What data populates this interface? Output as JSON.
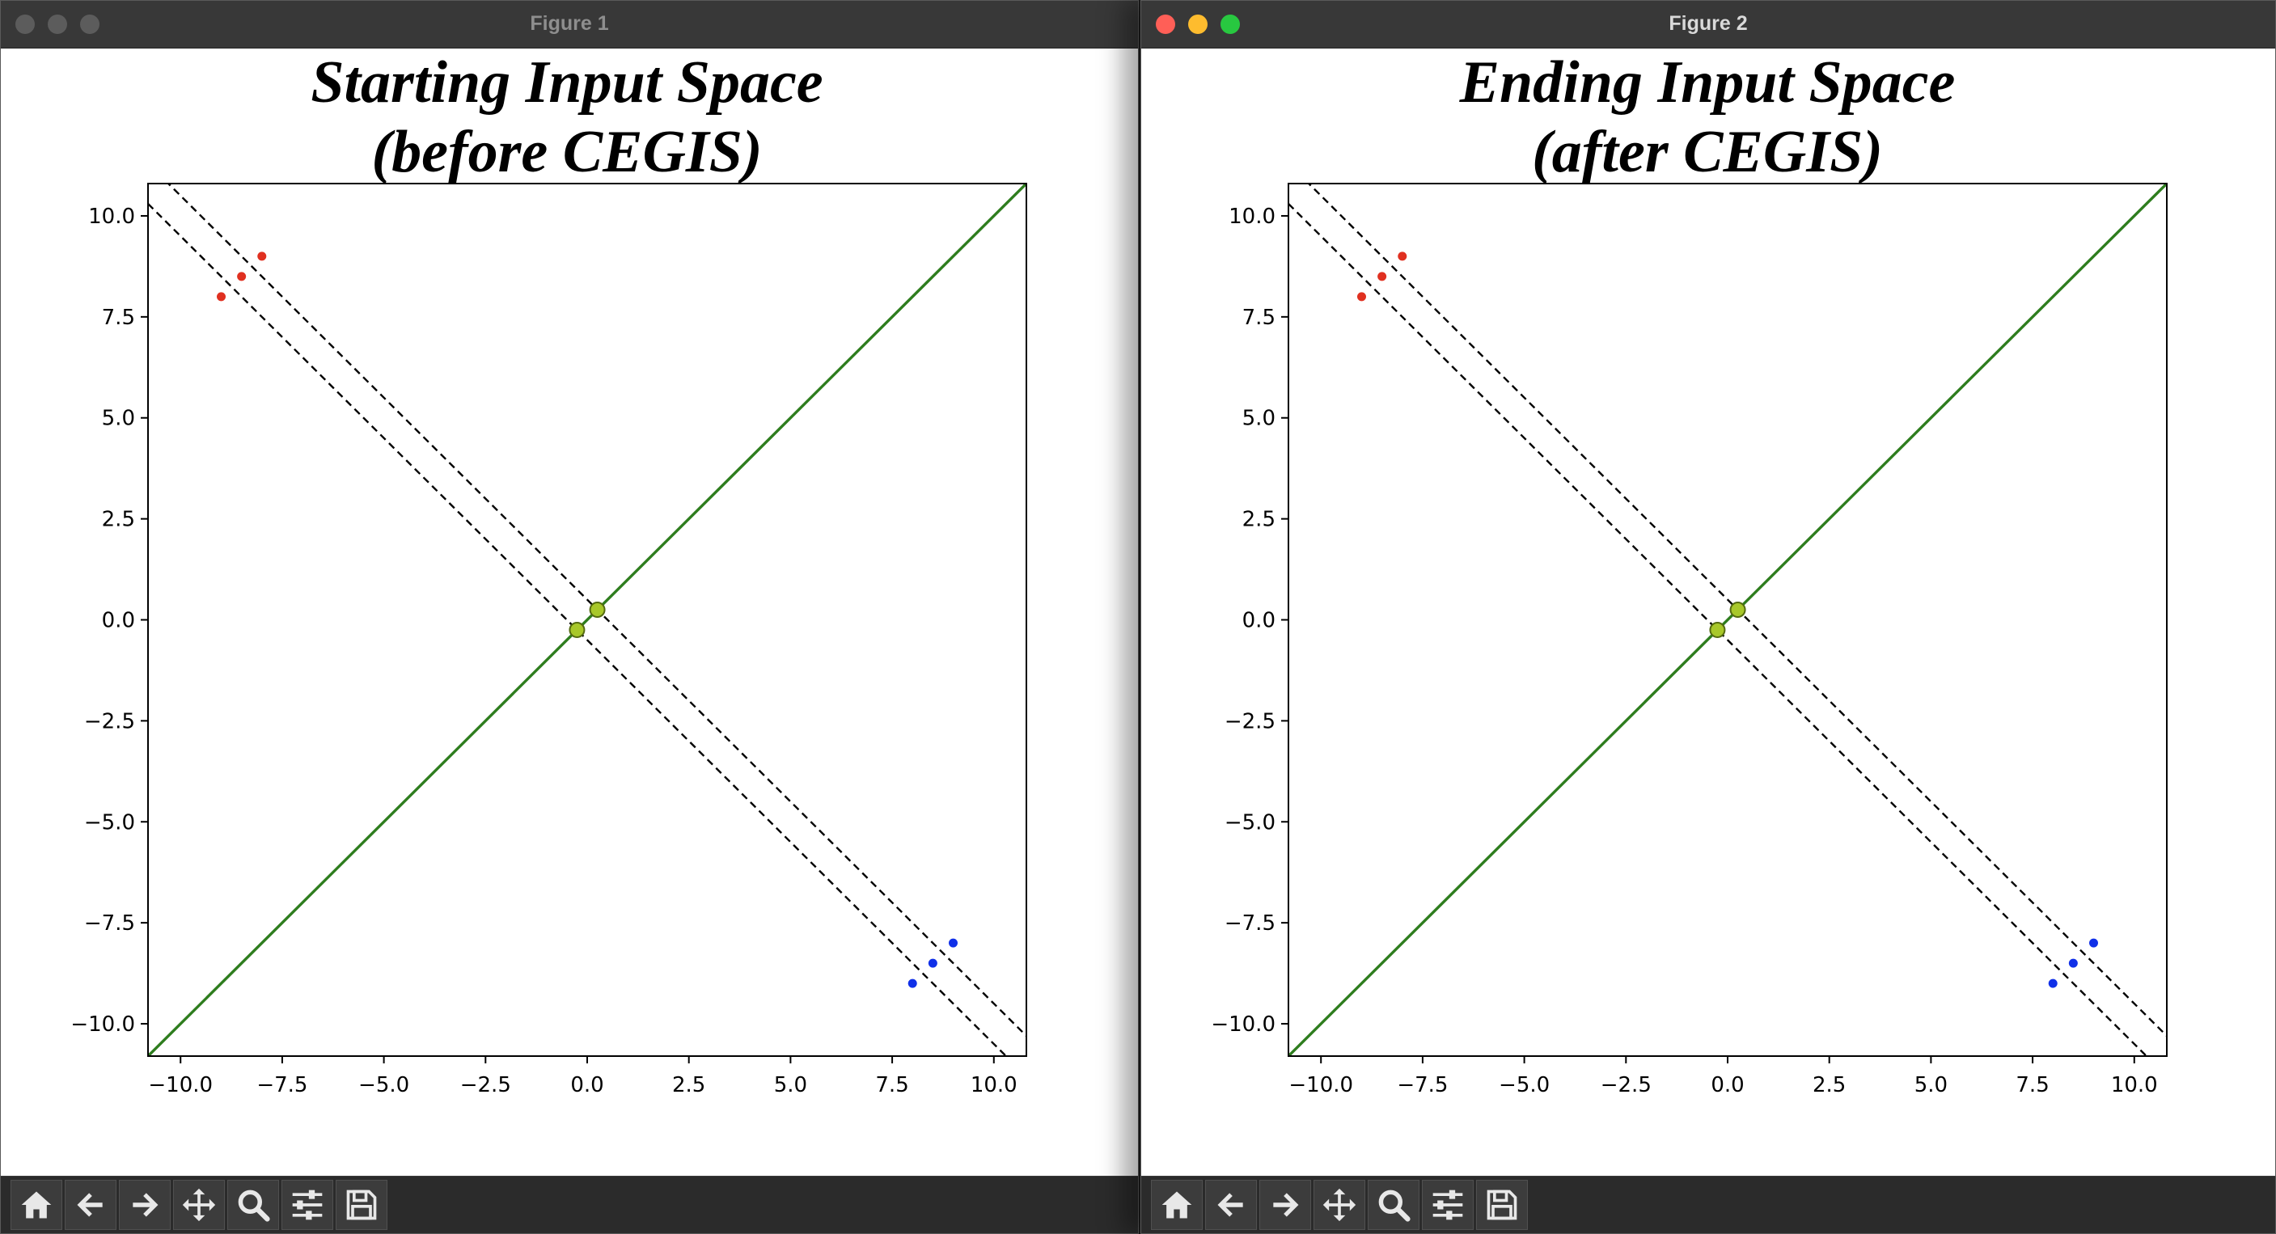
{
  "windows": [
    {
      "title": "Figure 1",
      "plot_title_line1": "Starting Input Space",
      "plot_title_line2": "(before CEGIS)",
      "active": false
    },
    {
      "title": "Figure 2",
      "plot_title_line1": "Ending Input Space",
      "plot_title_line2": "(after CEGIS)",
      "active": true
    }
  ],
  "toolbar": {
    "buttons": [
      {
        "name": "home-button",
        "icon": "home-icon"
      },
      {
        "name": "back-button",
        "icon": "arrow-left-icon"
      },
      {
        "name": "forward-button",
        "icon": "arrow-right-icon"
      },
      {
        "name": "pan-button",
        "icon": "move-icon"
      },
      {
        "name": "zoom-button",
        "icon": "magnifier-icon"
      },
      {
        "name": "configure-subplots-button",
        "icon": "sliders-icon"
      },
      {
        "name": "save-button",
        "icon": "save-icon"
      }
    ]
  },
  "colors": {
    "red_points": "#e03020",
    "blue_points": "#1030e8",
    "green_line": "#2e7d1e",
    "dashed_lines": "#000000",
    "intersection_markers": "#a8c82a"
  },
  "chart_data": [
    {
      "type": "scatter",
      "title": "Starting Input Space (before CEGIS)",
      "xlabel": "",
      "ylabel": "",
      "xlim": [
        -10.8,
        10.8
      ],
      "ylim": [
        -10.8,
        10.8
      ],
      "xticks": [
        "−10.0",
        "−7.5",
        "−5.0",
        "−2.5",
        "0.0",
        "2.5",
        "5.0",
        "7.5",
        "10.0"
      ],
      "yticks": [
        "10.0",
        "7.5",
        "5.0",
        "2.5",
        "0.0",
        "−2.5",
        "−5.0",
        "−7.5",
        "−10.0"
      ],
      "grid": false,
      "series": [
        {
          "color": "red",
          "points": [
            [
              -9,
              8
            ],
            [
              -8.5,
              8.5
            ],
            [
              -8,
              9
            ]
          ]
        },
        {
          "color": "blue",
          "points": [
            [
              8,
              -9
            ],
            [
              8.5,
              -8.5
            ],
            [
              9,
              -8
            ]
          ]
        }
      ],
      "lines": [
        {
          "style": "solid",
          "color": "green",
          "equation": "y = x"
        },
        {
          "style": "dashed",
          "color": "black",
          "equation": "x + y = 0.5"
        },
        {
          "style": "dashed",
          "color": "black",
          "equation": "x + y = -0.5"
        }
      ],
      "markers": [
        [
          -0.25,
          -0.25
        ],
        [
          0.25,
          0.25
        ]
      ]
    },
    {
      "type": "scatter",
      "title": "Ending Input Space (after CEGIS)",
      "xlabel": "",
      "ylabel": "",
      "xlim": [
        -10.8,
        10.8
      ],
      "ylim": [
        -10.8,
        10.8
      ],
      "xticks": [
        "−10.0",
        "−7.5",
        "−5.0",
        "−2.5",
        "0.0",
        "2.5",
        "5.0",
        "7.5",
        "10.0"
      ],
      "yticks": [
        "10.0",
        "7.5",
        "5.0",
        "2.5",
        "0.0",
        "−2.5",
        "−5.0",
        "−7.5",
        "−10.0"
      ],
      "grid": false,
      "series": [
        {
          "color": "red",
          "points": [
            [
              -9,
              8
            ],
            [
              -8.5,
              8.5
            ],
            [
              -8,
              9
            ]
          ]
        },
        {
          "color": "blue",
          "points": [
            [
              8,
              -9
            ],
            [
              8.5,
              -8.5
            ],
            [
              9,
              -8
            ]
          ]
        }
      ],
      "lines": [
        {
          "style": "solid",
          "color": "green",
          "equation": "y = x"
        },
        {
          "style": "dashed",
          "color": "black",
          "equation": "x + y = 0.5"
        },
        {
          "style": "dashed",
          "color": "black",
          "equation": "x + y = -0.5"
        }
      ],
      "markers": [
        [
          -0.25,
          -0.25
        ],
        [
          0.25,
          0.25
        ]
      ]
    }
  ]
}
